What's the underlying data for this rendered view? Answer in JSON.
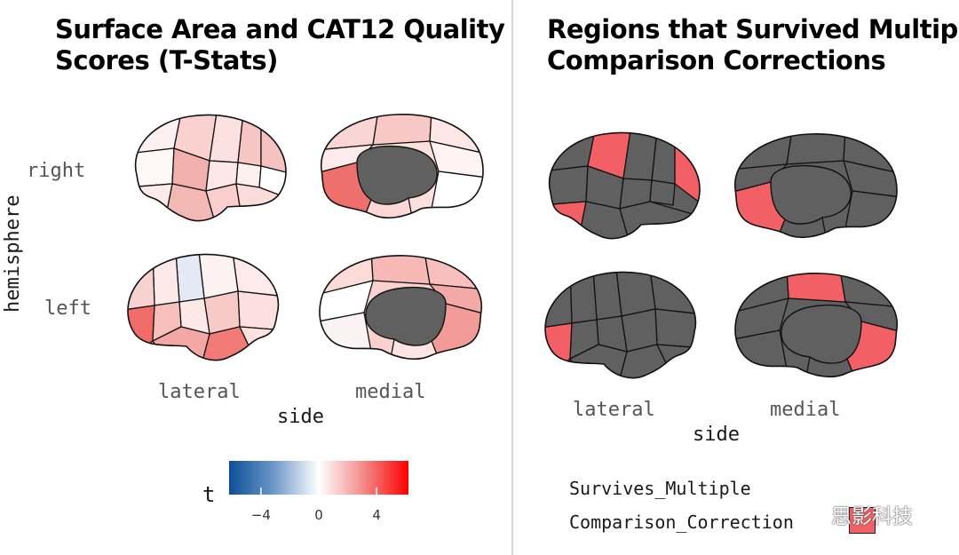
{
  "left_panel": {
    "title_lines": [
      "Surface Area and CAT12 Quality",
      "Scores (T-Stats)"
    ],
    "facet_row_title": "hemisphere",
    "rows": [
      "right",
      "left"
    ],
    "columns": [
      "lateral",
      "medial"
    ],
    "x_axis_title": "side",
    "legend": {
      "title": "t",
      "ticks": [
        "−4",
        "0",
        "4"
      ],
      "tick_values": [
        -4,
        0,
        4
      ],
      "range": [
        -6.2,
        6.2
      ],
      "colors": {
        "low": "#1f5fa8",
        "mid": "#ffffff",
        "high": "#ff0000"
      }
    }
  },
  "right_panel": {
    "title_lines": [
      "Regions that Survived Multiple",
      "Comparison Corrections"
    ],
    "columns": [
      "lateral",
      "medial"
    ],
    "x_axis_title": "side",
    "legend": {
      "title_lines": [
        "Survives_Multiple",
        "Comparison_Correction"
      ],
      "swatch_color": "#f26065"
    }
  },
  "colors": {
    "outline": "#111111",
    "subcortical": "#606060",
    "not_significant": "#606060",
    "significant": "#f26065"
  },
  "watermark": {
    "text": "思影科技"
  }
}
